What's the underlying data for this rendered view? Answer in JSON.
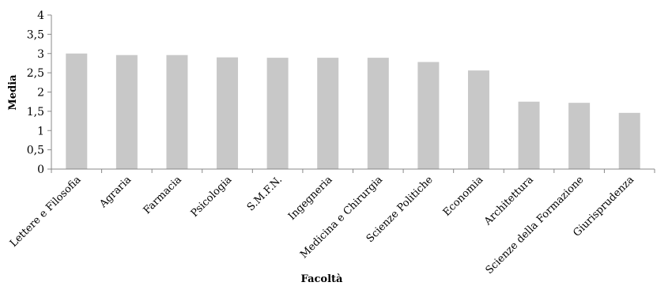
{
  "chart_data": {
    "type": "bar",
    "categories": [
      "Lettere e Filosofia",
      "Agraria",
      "Farmacia",
      "Psicologia",
      "S.M.F.N.",
      "Ingegneria",
      "Medicina e Chirurgia",
      "Scienze Politiche",
      "Economia",
      "Architettura",
      "Scienze della Formazione",
      "Giurisprudenza"
    ],
    "values": [
      3.0,
      2.96,
      2.96,
      2.9,
      2.89,
      2.89,
      2.89,
      2.78,
      2.56,
      1.75,
      1.72,
      1.46
    ],
    "title": "",
    "xlabel": "Facoltà",
    "ylabel": "Media",
    "ylim": [
      0,
      4
    ],
    "yticks": [
      "0",
      "0,5",
      "1",
      "1,5",
      "2",
      "2,5",
      "3",
      "3,5",
      "4"
    ],
    "grid": false,
    "bar_color": "#c8c8c8",
    "axis_color": "#888888"
  }
}
